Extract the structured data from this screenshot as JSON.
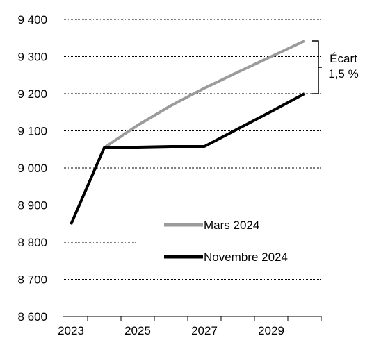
{
  "chart_data": {
    "type": "line",
    "x": [
      2023,
      2024,
      2025,
      2026,
      2027,
      2028,
      2029,
      2030
    ],
    "series": [
      {
        "name": "Mars 2024",
        "color": "#9b9b9b",
        "values": [
          null,
          9055,
          9115,
          9168,
          9215,
          9258,
          9300,
          9342
        ]
      },
      {
        "name": "Novembre 2024",
        "color": "#000000",
        "values": [
          8848,
          9055,
          9056,
          9058,
          9058,
          9105,
          9152,
          9200
        ]
      }
    ],
    "ylim": [
      8600,
      9400
    ],
    "yticks": [
      8600,
      8700,
      8800,
      8900,
      9000,
      9100,
      9200,
      9300,
      9400
    ],
    "ytick_labels": [
      "8 600",
      "8 700",
      "8 800",
      "8 900",
      "9 000",
      "9 100",
      "9 200",
      "9 300",
      "9 400"
    ],
    "xlim": [
      2022.75,
      2030.5
    ],
    "xticks": [
      2023,
      2025,
      2027,
      2029
    ],
    "xtick_labels": [
      "2023",
      "2025",
      "2027",
      "2029"
    ],
    "grid": true,
    "legend_position": "bottom-right",
    "annotation": {
      "line1": "Écart",
      "line2": "1,5 %",
      "from_value": 9200,
      "to_value": 9342
    },
    "title": "",
    "xlabel": "",
    "ylabel": ""
  }
}
